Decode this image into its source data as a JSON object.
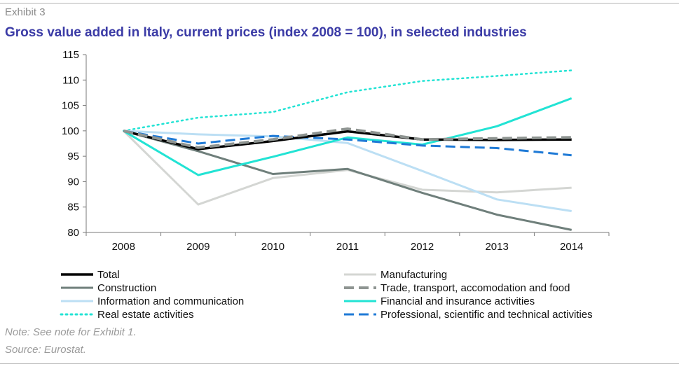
{
  "header": {
    "exhibit": "Exhibit 3",
    "title": "Gross value added in Italy, current prices (index 2008 = 100), in selected industries"
  },
  "footer": {
    "note": "Note: See note for Exhibit 1.",
    "source": "Source: Eurostat."
  },
  "chart_data": {
    "type": "line",
    "title": "Gross value added in Italy, current prices (index 2008 = 100), in selected industries",
    "x": [
      "2008",
      "2009",
      "2010",
      "2011",
      "2012",
      "2013",
      "2014"
    ],
    "ylim": [
      80,
      115
    ],
    "yticks": [
      80,
      85,
      90,
      95,
      100,
      105,
      110,
      115
    ],
    "grid": false,
    "legend_position": "bottom",
    "series": [
      {
        "name": "Total",
        "color": "#000000",
        "dash": "solid",
        "width": 3.5,
        "values": [
          100,
          96.4,
          98.0,
          99.9,
          98.3,
          98.2,
          98.3
        ]
      },
      {
        "name": "Manufacturing",
        "color": "#d4d6d3",
        "dash": "solid",
        "width": 3,
        "values": [
          100,
          85.5,
          90.7,
          92.3,
          88.4,
          87.9,
          88.8
        ]
      },
      {
        "name": "Construction",
        "color": "#6f7f7b",
        "dash": "solid",
        "width": 3,
        "values": [
          100,
          96.0,
          91.5,
          92.5,
          87.8,
          83.5,
          80.5
        ]
      },
      {
        "name": "Trade, transport, accomodation and food",
        "color": "#8e9491",
        "dash": "dashed",
        "width": 4,
        "values": [
          100,
          96.7,
          98.3,
          100.4,
          98.3,
          98.5,
          98.7
        ]
      },
      {
        "name": "Information and communication",
        "color": "#bcdff4",
        "dash": "solid",
        "width": 3,
        "values": [
          100,
          99.3,
          98.9,
          97.6,
          92.1,
          86.5,
          84.2
        ]
      },
      {
        "name": "Financial and insurance activities",
        "color": "#22e3d4",
        "dash": "solid",
        "width": 3,
        "values": [
          100,
          91.3,
          94.9,
          98.7,
          97.3,
          100.9,
          106.4
        ]
      },
      {
        "name": "Real estate activities",
        "color": "#22e3d4",
        "dash": "dotted",
        "width": 2.5,
        "values": [
          100,
          102.6,
          103.7,
          107.6,
          109.8,
          110.8,
          111.9
        ]
      },
      {
        "name": "Professional, scientific and technical activities",
        "color": "#1f7ad6",
        "dash": "dashed",
        "width": 3,
        "values": [
          100,
          97.5,
          99.0,
          98.3,
          97.1,
          96.6,
          95.2
        ]
      }
    ]
  }
}
